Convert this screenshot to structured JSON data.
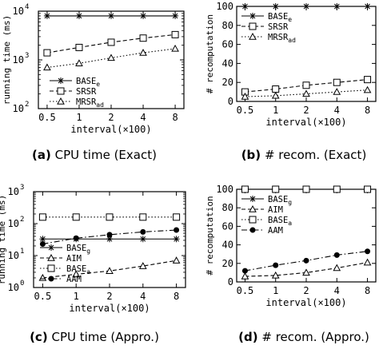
{
  "chart_data": [
    {
      "id": "a",
      "type": "line",
      "caption_letter": "(a)",
      "caption_text": "CPU time (Exact)",
      "xlabel": "interval(×100)",
      "ylabel": "running time (ms)",
      "x_categories": [
        "0.5",
        "1",
        "2",
        "4",
        "8"
      ],
      "y_scale": "log",
      "ylim": [
        100,
        10000
      ],
      "y_ticks": [
        {
          "value": 100,
          "base": "10",
          "exp": "2"
        },
        {
          "value": 1000,
          "base": "10",
          "exp": "3"
        },
        {
          "value": 10000,
          "base": "10",
          "exp": "4"
        }
      ],
      "legend_position": "bottom-right",
      "series": [
        {
          "name": "BASE",
          "sub": "e",
          "marker": "star",
          "dash": "solid",
          "values": [
            8000,
            8000,
            8000,
            8000,
            8000
          ]
        },
        {
          "name": "SRSR",
          "sub": "",
          "marker": "square",
          "dash": "dashed",
          "values": [
            1400,
            1800,
            2300,
            2800,
            3300
          ]
        },
        {
          "name": "MRSR",
          "sub": "ad",
          "marker": "triangle",
          "dash": "dotted",
          "values": [
            700,
            850,
            1100,
            1400,
            1700
          ]
        }
      ]
    },
    {
      "id": "b",
      "type": "line",
      "caption_letter": "(b)",
      "caption_text": "# recom. (Exact)",
      "xlabel": "interval(×100)",
      "ylabel": "# recomputation",
      "x_categories": [
        "0.5",
        "1",
        "2",
        "4",
        "8"
      ],
      "y_scale": "linear",
      "ylim": [
        0,
        100
      ],
      "y_ticks": [
        {
          "value": 0,
          "label": "0"
        },
        {
          "value": 20,
          "label": "20"
        },
        {
          "value": 40,
          "label": "40"
        },
        {
          "value": 60,
          "label": "60"
        },
        {
          "value": 80,
          "label": "80"
        },
        {
          "value": 100,
          "label": "100"
        }
      ],
      "legend_position": "top-left",
      "series": [
        {
          "name": "BASE",
          "sub": "e",
          "marker": "star",
          "dash": "solid",
          "values": [
            100,
            100,
            100,
            100,
            100
          ]
        },
        {
          "name": "SRSR",
          "sub": "",
          "marker": "square",
          "dash": "dashed",
          "values": [
            10,
            13,
            17,
            20,
            23
          ]
        },
        {
          "name": "MRSR",
          "sub": "ad",
          "marker": "triangle",
          "dash": "dotted",
          "values": [
            5,
            6,
            8,
            10,
            12
          ]
        }
      ]
    },
    {
      "id": "c",
      "type": "line",
      "caption_letter": "(c)",
      "caption_text": "CPU time (Appro.)",
      "xlabel": "interval(×100)",
      "ylabel": "running time (ms)",
      "x_categories": [
        "0.5",
        "1",
        "2",
        "4",
        "8"
      ],
      "y_scale": "log",
      "ylim": [
        1,
        1000
      ],
      "y_ticks": [
        {
          "value": 1,
          "base": "10",
          "exp": "0"
        },
        {
          "value": 10,
          "base": "10",
          "exp": "1"
        },
        {
          "value": 100,
          "base": "10",
          "exp": "2"
        },
        {
          "value": 1000,
          "base": "10",
          "exp": "3"
        }
      ],
      "legend_position": "bottom-left",
      "series": [
        {
          "name": "BASE",
          "sub": "g",
          "marker": "star",
          "dash": "solid",
          "values": [
            33,
            33,
            33,
            33,
            33
          ]
        },
        {
          "name": "AIM",
          "sub": "",
          "marker": "triangle",
          "dash": "dashed",
          "values": [
            2,
            2.6,
            3.3,
            4.7,
            7
          ]
        },
        {
          "name": "BASE",
          "sub": "a",
          "marker": "square",
          "dash": "dotted",
          "values": [
            160,
            160,
            160,
            160,
            160
          ]
        },
        {
          "name": "AAM",
          "sub": "",
          "marker": "circle",
          "dash": "dashdot",
          "values": [
            23,
            35,
            45,
            55,
            63
          ]
        }
      ]
    },
    {
      "id": "d",
      "type": "line",
      "caption_letter": "(d)",
      "caption_text": "# recom. (Appro.)",
      "xlabel": "interval(×100)",
      "ylabel": "# recomputation",
      "x_categories": [
        "0.5",
        "1",
        "2",
        "4",
        "8"
      ],
      "y_scale": "linear",
      "ylim": [
        0,
        100
      ],
      "y_ticks": [
        {
          "value": 0,
          "label": "0"
        },
        {
          "value": 20,
          "label": "20"
        },
        {
          "value": 40,
          "label": "40"
        },
        {
          "value": 60,
          "label": "60"
        },
        {
          "value": 80,
          "label": "80"
        },
        {
          "value": 100,
          "label": "100"
        }
      ],
      "legend_position": "top-left",
      "series": [
        {
          "name": "BASE",
          "sub": "g",
          "marker": "star",
          "dash": "solid",
          "values": [
            100,
            100,
            100,
            100,
            100
          ]
        },
        {
          "name": "AIM",
          "sub": "",
          "marker": "triangle",
          "dash": "dashed",
          "values": [
            6,
            7,
            10,
            15,
            21
          ]
        },
        {
          "name": "BASE",
          "sub": "a",
          "marker": "square",
          "dash": "dotted",
          "values": [
            100,
            100,
            100,
            100,
            100
          ]
        },
        {
          "name": "AAM",
          "sub": "",
          "marker": "circle",
          "dash": "dashdot",
          "values": [
            12,
            18,
            23,
            29,
            33
          ]
        }
      ]
    }
  ]
}
